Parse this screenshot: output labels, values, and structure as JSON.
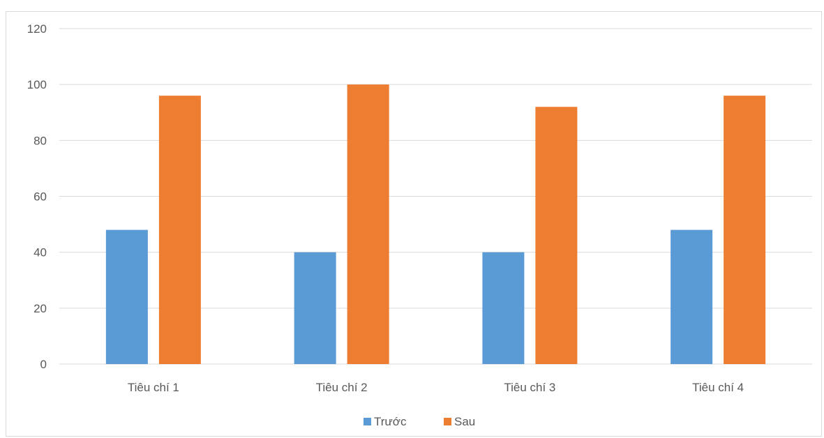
{
  "chart_data": {
    "type": "bar",
    "title": "",
    "xlabel": "",
    "ylabel": "",
    "categories": [
      "Tiêu chí 1",
      "Tiêu chí 2",
      "Tiêu chí 3",
      "Tiêu chí 4"
    ],
    "series": [
      {
        "name": "Trước",
        "color": "#5B9BD5",
        "values": [
          48,
          40,
          40,
          48
        ]
      },
      {
        "name": "Sau",
        "color": "#ED7D31",
        "values": [
          96,
          100,
          92,
          96
        ]
      }
    ],
    "ylim": [
      0,
      120
    ],
    "yticks": [
      "0",
      "20",
      "40",
      "60",
      "80",
      "100",
      "120"
    ],
    "grid": true,
    "legend_position": "bottom"
  }
}
